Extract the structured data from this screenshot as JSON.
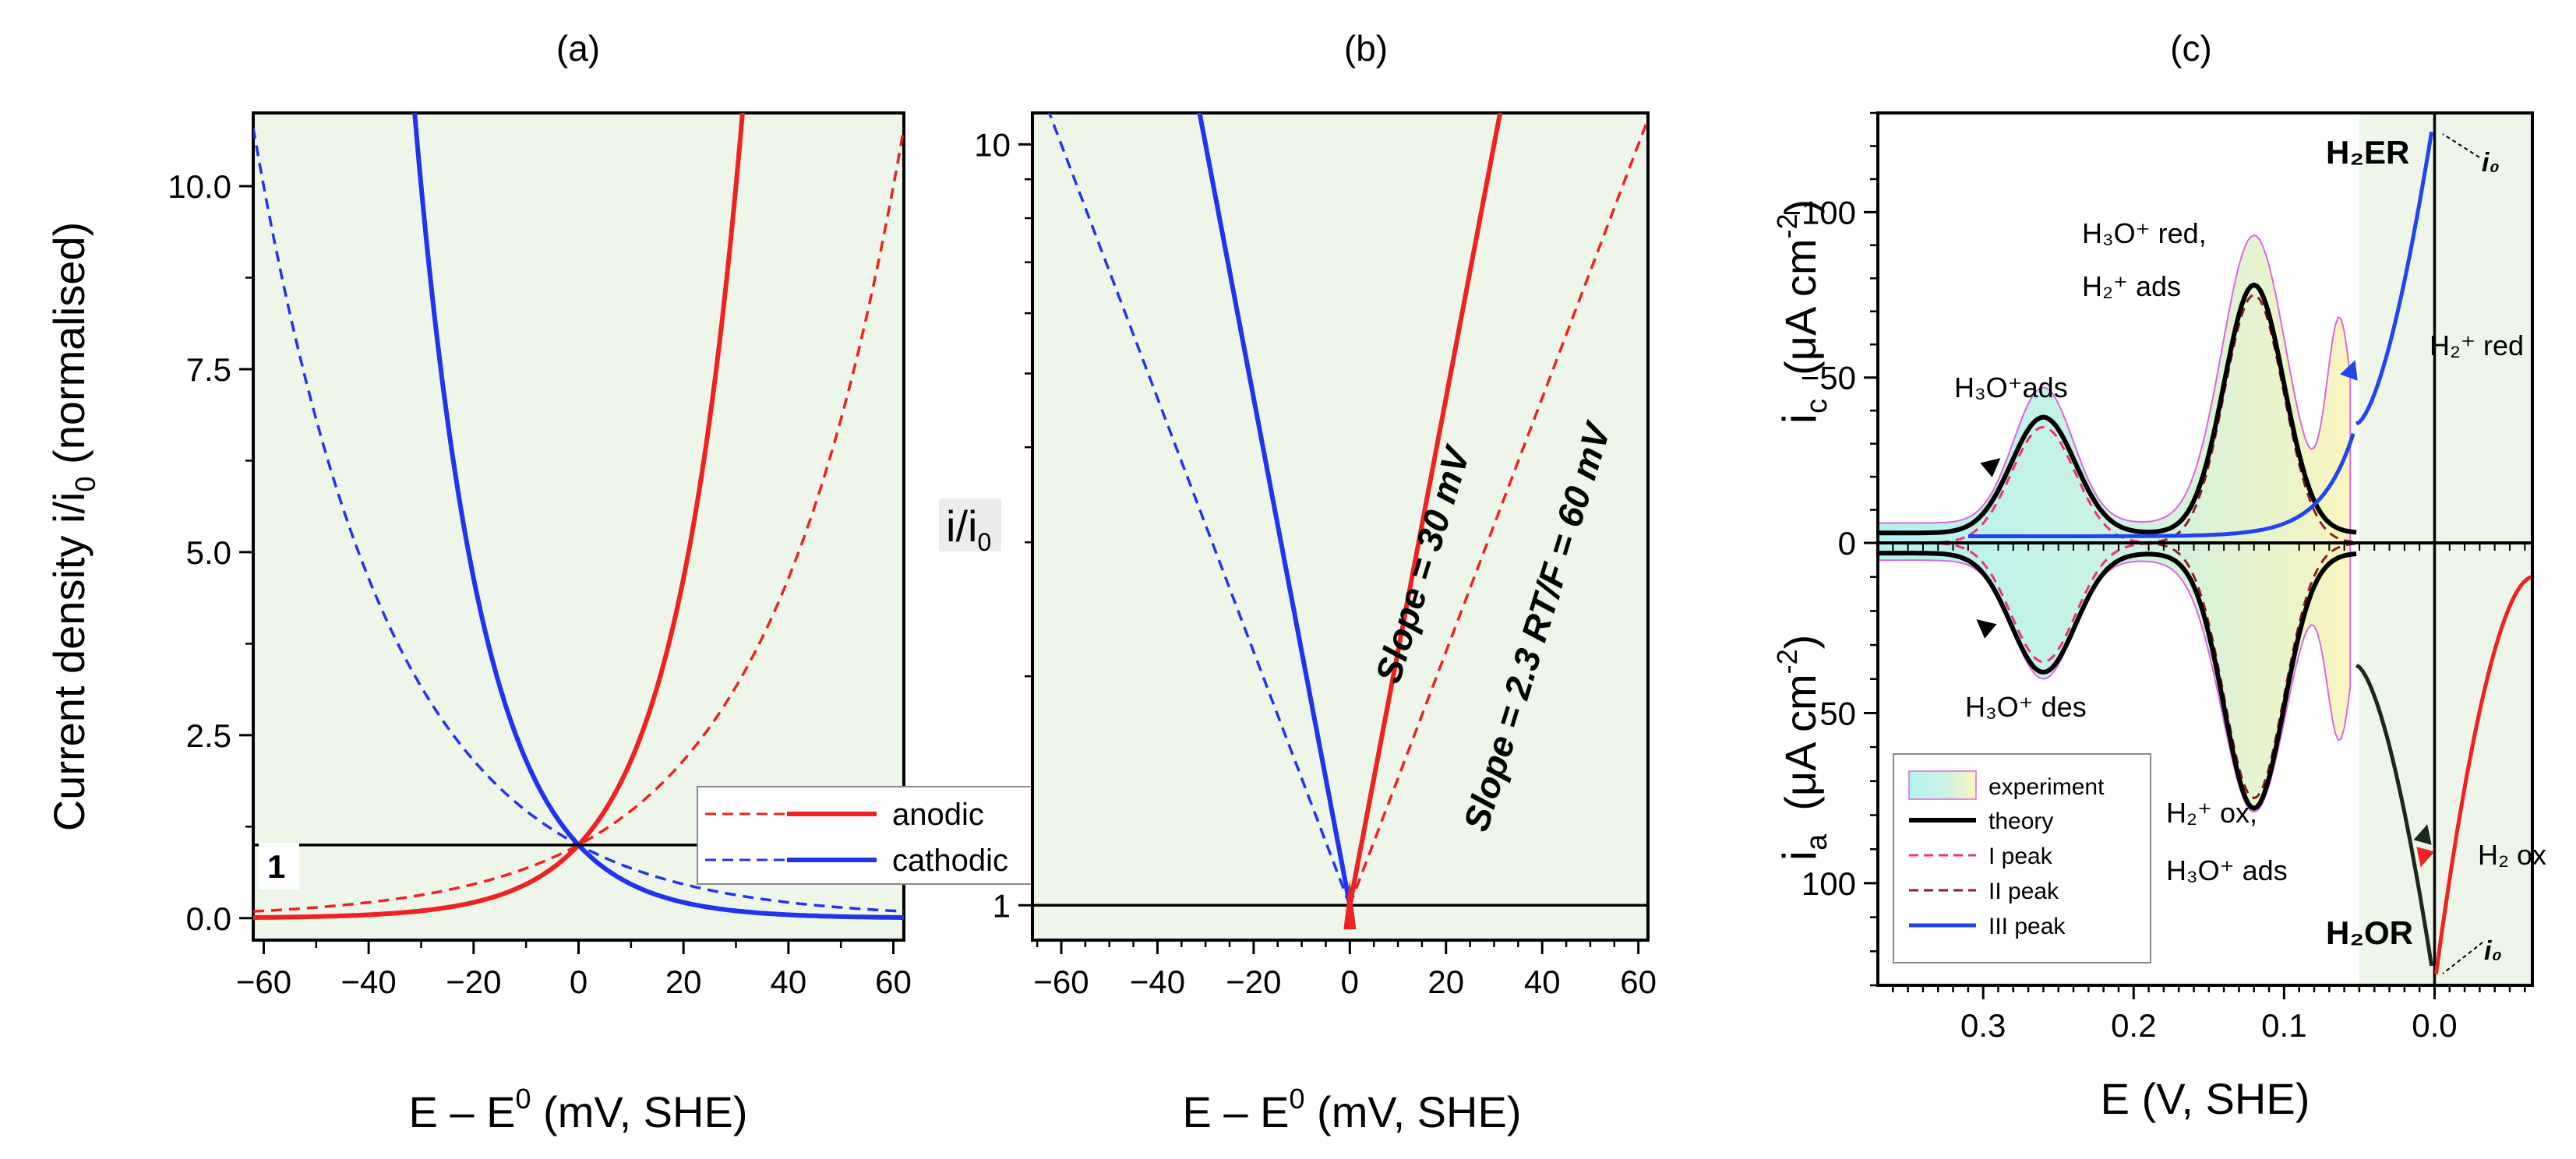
{
  "colors": {
    "plot_bg": "#eef5e9",
    "anodic": "#ee2222",
    "cathodic": "#2233ee",
    "theory": "#000000",
    "exp_edge": "#dd66dd",
    "peak1": "#ee3377",
    "peak2": "#882222",
    "peak3": "#2244ee",
    "label_red": "#ee1111",
    "label_dark": "#882222",
    "label_purple": "#882299",
    "slope_dashed": "#f0a8a0"
  },
  "chart_data": [
    {
      "id": "a",
      "panel_label": "(a)",
      "type": "line",
      "xlabel": "E – E",
      "xlabel_sup": "0",
      "xlabel_tail": " (mV, SHE)",
      "ylabel": "Current density i/i",
      "ylabel_sub": "0",
      "ylabel_tail": " (normalised)",
      "xlim": [
        -62,
        62
      ],
      "ylim": [
        -0.3,
        11
      ],
      "xticks": [
        -60,
        -40,
        -20,
        0,
        20,
        40,
        60
      ],
      "xtick_labels": [
        "−60",
        "−40",
        "−20",
        "0",
        "20",
        "40",
        "60"
      ],
      "yticks": [
        0.0,
        2.5,
        5.0,
        7.5,
        10.0
      ],
      "ytick_labels": [
        "0.0",
        "2.5",
        "5.0",
        "7.5",
        "10.0"
      ],
      "ref_line": {
        "y": 1,
        "label": "1"
      },
      "legend": [
        {
          "name": "anodic",
          "color": "#ee2222"
        },
        {
          "name": "cathodic",
          "color": "#2233ee"
        }
      ],
      "legend_position": "center-right",
      "series": [
        {
          "name": "anodic",
          "style": "solid",
          "slope_mV": 30,
          "direction": 1
        },
        {
          "name": "anodic",
          "style": "dashed",
          "slope_mV": 60,
          "direction": 1
        },
        {
          "name": "cathodic",
          "style": "solid",
          "slope_mV": 30,
          "direction": -1
        },
        {
          "name": "cathodic",
          "style": "dashed",
          "slope_mV": 60,
          "direction": -1
        }
      ]
    },
    {
      "id": "b",
      "panel_label": "(b)",
      "type": "line",
      "scale_y": "log",
      "xlabel": "E – E",
      "xlabel_sup": "0",
      "xlabel_tail": " (mV, SHE)",
      "ylabel": "i/i",
      "ylabel_sub": "0",
      "xlim": [
        -66,
        62
      ],
      "ylim": [
        0.9,
        11
      ],
      "xticks": [
        -60,
        -40,
        -20,
        0,
        20,
        40,
        60
      ],
      "xtick_labels": [
        "−60",
        "−40",
        "−20",
        "0",
        "20",
        "40",
        "60"
      ],
      "yticks": [
        1,
        10
      ],
      "ytick_labels": [
        "1",
        "10"
      ],
      "ref_line": {
        "y": 1
      },
      "annotations": [
        {
          "text": "Slope = 30 mV",
          "color": "#aa2020"
        },
        {
          "text": "Slope = 2.3 RT/F = 60 mV",
          "color": "#f0a8a0"
        }
      ],
      "series": [
        {
          "name": "anodic",
          "style": "solid",
          "slope_mV": 30,
          "direction": 1
        },
        {
          "name": "anodic",
          "style": "dashed",
          "slope_mV": 60,
          "direction": 1
        },
        {
          "name": "cathodic",
          "style": "solid",
          "slope_mV": 30,
          "direction": -1
        },
        {
          "name": "cathodic",
          "style": "dashed",
          "slope_mV": 60,
          "direction": -1
        }
      ]
    },
    {
      "id": "c",
      "panel_label": "(c)",
      "type": "line",
      "xlabel": "E  (V, SHE)",
      "ylabel_top": "i",
      "ylabel_top_sub": "c",
      "ylabel_top_units": "(μA cm",
      "ylabel_top_exp": "-2",
      "ylabel_bottom": "i",
      "ylabel_bottom_sub": "a",
      "ylabel_bottom_units": "(μA cm",
      "ylabel_bottom_exp": "-2",
      "xlim": [
        0.37,
        -0.065
      ],
      "ylim_top": [
        0,
        -130
      ],
      "ylim_bottom": [
        0,
        130
      ],
      "xticks": [
        0.3,
        0.2,
        0.1,
        0.0
      ],
      "xtick_labels": [
        "0.3",
        "0.2",
        "0.1",
        "0.0"
      ],
      "yticks_top": [
        -100,
        -50,
        0
      ],
      "ytick_labels_top": [
        "−100",
        "−50",
        "0"
      ],
      "yticks_bottom": [
        50,
        100
      ],
      "ytick_labels_bottom": [
        "50",
        "100"
      ],
      "legend": [
        {
          "name": "experiment",
          "kind": "fill"
        },
        {
          "name": "theory",
          "kind": "line",
          "color": "#000000"
        },
        {
          "name": "I peak",
          "kind": "dashed",
          "color": "#ee3377"
        },
        {
          "name": "II peak",
          "kind": "dashed",
          "color": "#882222"
        },
        {
          "name": "III peak",
          "kind": "line",
          "color": "#2244ee"
        }
      ],
      "legend_position": "bottom-left",
      "peaks": [
        {
          "name": "I peak",
          "center_V": 0.26,
          "height": 35,
          "width_V": 0.03
        },
        {
          "name": "II peak",
          "center_V": 0.12,
          "height": 75,
          "width_V": 0.028
        }
      ],
      "theory_baseline": 3,
      "experiment_peaks": [
        {
          "center_V": 0.26,
          "height": 41
        },
        {
          "center_V": 0.12,
          "height": 87
        },
        {
          "center_V": 0.055,
          "height": 90
        }
      ],
      "annotations": {
        "h3o_ads": "H₃O⁺ads",
        "h3o_red_1": "H₃O⁺ red,",
        "h2_ads": "H₂⁺ ads",
        "h2er": "H₂ER",
        "i0": "i₀",
        "h2_red": "H₂⁺ red",
        "h3o_des": "H₃O⁺ des",
        "h2_ox_1": "H₂⁺ ox,",
        "h3o_ads_2": "H₃O⁺ ads",
        "h2or": "H₂OR",
        "h2_ox": "H₂ ox"
      }
    }
  ]
}
